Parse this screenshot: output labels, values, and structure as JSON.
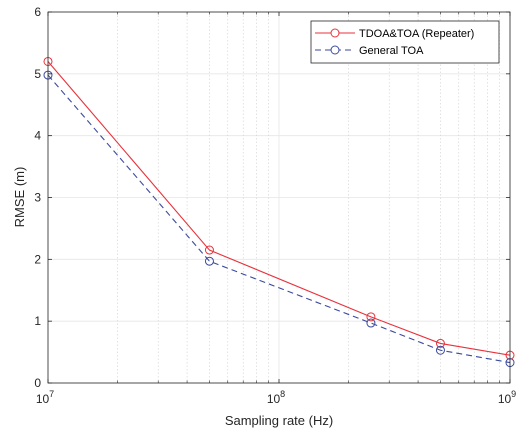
{
  "chart_data": {
    "type": "line",
    "title": "",
    "xlabel": "Sampling rate (Hz)",
    "ylabel": "RMSE (m)",
    "xscale": "log",
    "xlim": [
      10000000,
      1000000000
    ],
    "ylim": [
      0,
      6
    ],
    "grid": true,
    "legend_position": "top-right",
    "x_ticks": [
      {
        "value": 10000000,
        "base": "10",
        "exp": "7"
      },
      {
        "value": 100000000,
        "base": "10",
        "exp": "8"
      },
      {
        "value": 1000000000,
        "base": "10",
        "exp": "9"
      }
    ],
    "y_ticks": [
      "0",
      "1",
      "2",
      "3",
      "4",
      "5",
      "6"
    ],
    "series": [
      {
        "name": "TDOA&TOA (Repeater)",
        "color": "#e8323c",
        "line_style": "solid",
        "marker": "circle",
        "x": [
          10000000,
          50000000,
          250000000,
          500000000,
          1000000000
        ],
        "y": [
          5.2,
          2.15,
          1.07,
          0.64,
          0.45
        ]
      },
      {
        "name": "General TOA",
        "color": "#3a4a9e",
        "line_style": "dashed",
        "marker": "circle",
        "x": [
          10000000,
          50000000,
          250000000,
          500000000,
          1000000000
        ],
        "y": [
          4.98,
          1.97,
          0.97,
          0.53,
          0.33
        ]
      }
    ]
  }
}
